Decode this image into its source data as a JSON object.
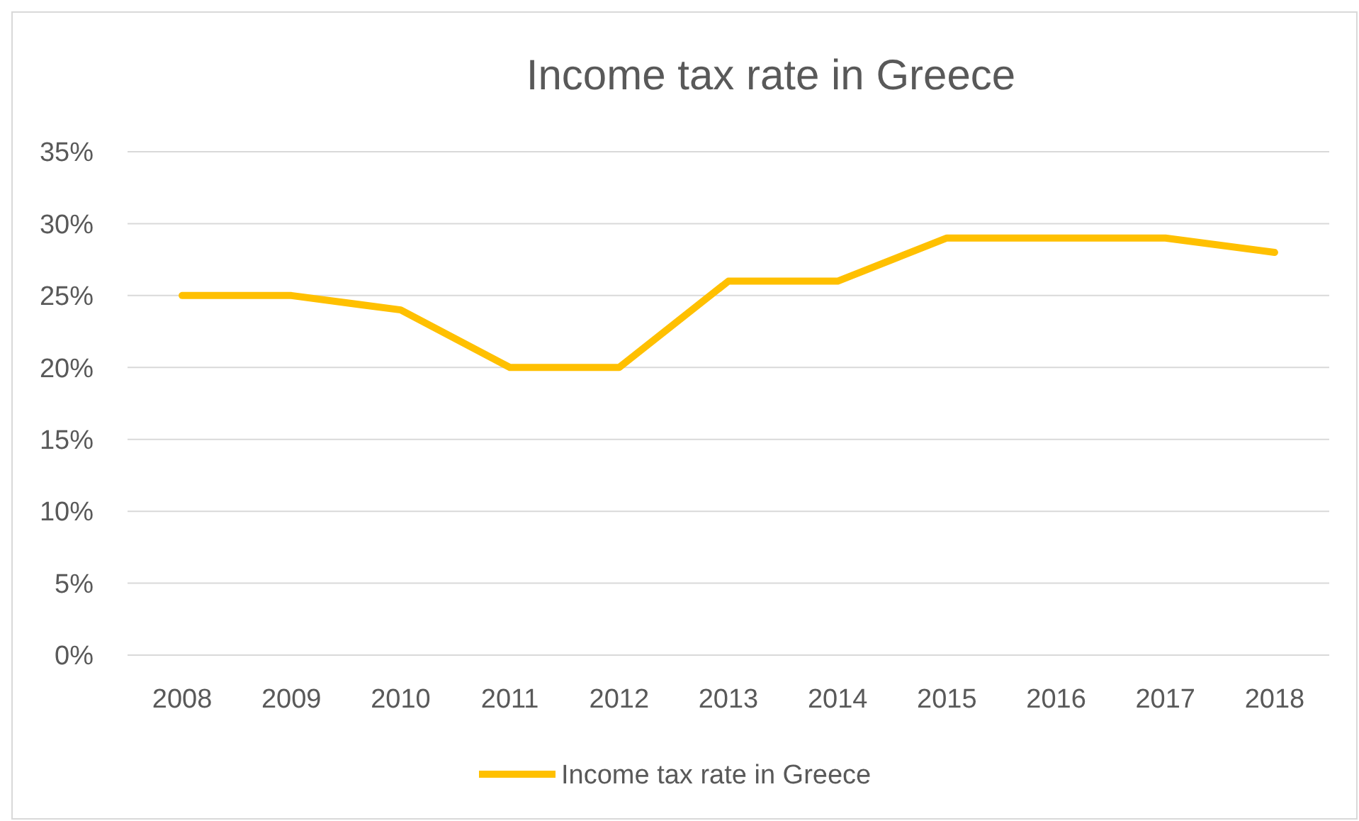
{
  "chart_data": {
    "type": "line",
    "title": "Income tax rate in Greece",
    "categories": [
      "2008",
      "2009",
      "2010",
      "2011",
      "2012",
      "2013",
      "2014",
      "2015",
      "2016",
      "2017",
      "2018"
    ],
    "series": [
      {
        "name": "Income tax rate in Greece",
        "color": "#ffc000",
        "values": [
          25,
          25,
          24,
          20,
          20,
          26,
          26,
          29,
          29,
          29,
          28
        ]
      }
    ],
    "ylim": [
      0,
      35
    ],
    "yticks": [
      {
        "value": 0,
        "label": "0%"
      },
      {
        "value": 5,
        "label": "5%"
      },
      {
        "value": 10,
        "label": "10%"
      },
      {
        "value": 15,
        "label": "15%"
      },
      {
        "value": 20,
        "label": "20%"
      },
      {
        "value": 25,
        "label": "25%"
      },
      {
        "value": 30,
        "label": "30%"
      },
      {
        "value": 35,
        "label": "35%"
      }
    ],
    "grid": "y",
    "legend": "bottom",
    "marker": "none",
    "line_style": "solid"
  }
}
